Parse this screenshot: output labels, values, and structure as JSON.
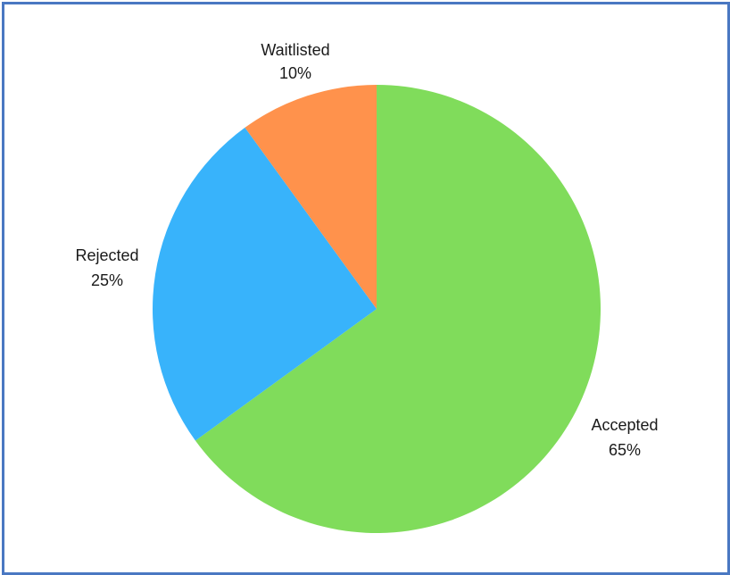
{
  "chart_data": {
    "type": "pie",
    "title": "",
    "slices": [
      {
        "label": "Accepted",
        "value": 65,
        "value_label": "65%",
        "color": "#80dc5b"
      },
      {
        "label": "Rejected",
        "value": 25,
        "value_label": "25%",
        "color": "#38b3fb"
      },
      {
        "label": "Waitlisted",
        "value": 10,
        "value_label": "10%",
        "color": "#ff924c"
      }
    ],
    "legend": "none",
    "border_color": "#4a78c2"
  }
}
